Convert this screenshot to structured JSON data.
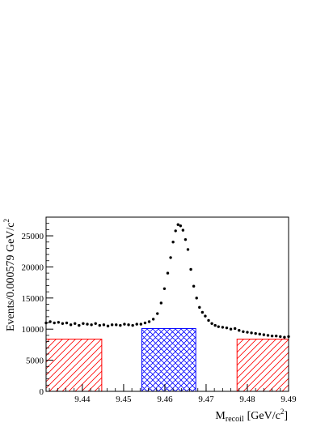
{
  "chart_data": {
    "type": "scatter",
    "xlabel_main": "M",
    "xlabel_sub": "recoil",
    "xlabel_unit": "[GeV/c",
    "xlabel_sup": "2",
    "xlabel_close": "]",
    "ylabel_main": "Events/0.000579 GeV/c",
    "ylabel_sup": "2",
    "xlim": [
      9.4312,
      9.49
    ],
    "ylim": [
      0,
      28000
    ],
    "x_ticks": [
      9.44,
      9.45,
      9.46,
      9.47,
      9.48,
      9.49
    ],
    "x_tick_labels": [
      "9.44",
      "9.45",
      "9.46",
      "9.47",
      "9.48",
      "9.49"
    ],
    "y_ticks": [
      0,
      5000,
      10000,
      15000,
      20000,
      25000
    ],
    "y_tick_labels": [
      "0",
      "5000",
      "10000",
      "15000",
      "20000",
      "25000"
    ],
    "grid": false,
    "regions": [
      {
        "x0": 9.4312,
        "x1": 9.4447,
        "height": 8400,
        "color": "#ff0000",
        "pattern": "diagonal-hatch"
      },
      {
        "x0": 9.4544,
        "x1": 9.4675,
        "height": 10100,
        "color": "#0000ff",
        "pattern": "cross-hatch"
      },
      {
        "x0": 9.4775,
        "x1": 9.49,
        "height": 8400,
        "color": "#ff0000",
        "pattern": "diagonal-hatch"
      }
    ],
    "series": [
      {
        "marker": "dot",
        "color": "#000000",
        "points": [
          [
            9.4312,
            11000
          ],
          [
            9.4322,
            11200
          ],
          [
            9.4332,
            11000
          ],
          [
            9.4342,
            11100
          ],
          [
            9.4352,
            10900
          ],
          [
            9.4362,
            11000
          ],
          [
            9.4372,
            10700
          ],
          [
            9.4382,
            10900
          ],
          [
            9.4392,
            10600
          ],
          [
            9.4402,
            10900
          ],
          [
            9.4412,
            10800
          ],
          [
            9.4422,
            10700
          ],
          [
            9.4432,
            10900
          ],
          [
            9.4442,
            10600
          ],
          [
            9.4452,
            10700
          ],
          [
            9.4462,
            10500
          ],
          [
            9.4472,
            10700
          ],
          [
            9.4482,
            10700
          ],
          [
            9.4492,
            10600
          ],
          [
            9.4502,
            10800
          ],
          [
            9.4512,
            10700
          ],
          [
            9.4522,
            10600
          ],
          [
            9.4532,
            10800
          ],
          [
            9.4542,
            10800
          ],
          [
            9.4552,
            11000
          ],
          [
            9.4562,
            11200
          ],
          [
            9.4572,
            11600
          ],
          [
            9.4582,
            12500
          ],
          [
            9.4591,
            14200
          ],
          [
            9.4599,
            16500
          ],
          [
            9.4607,
            19000
          ],
          [
            9.4614,
            21500
          ],
          [
            9.462,
            24000
          ],
          [
            9.4626,
            25800
          ],
          [
            9.4632,
            26800
          ],
          [
            9.4638,
            26600
          ],
          [
            9.4644,
            25900
          ],
          [
            9.465,
            24400
          ],
          [
            9.4656,
            22800
          ],
          [
            9.4663,
            19600
          ],
          [
            9.467,
            16900
          ],
          [
            9.4677,
            15000
          ],
          [
            9.4684,
            13500
          ],
          [
            9.4691,
            12700
          ],
          [
            9.4698,
            12100
          ],
          [
            9.4706,
            11400
          ],
          [
            9.4714,
            10900
          ],
          [
            9.4722,
            10600
          ],
          [
            9.473,
            10400
          ],
          [
            9.474,
            10300
          ],
          [
            9.475,
            10200
          ],
          [
            9.476,
            10000
          ],
          [
            9.477,
            10100
          ],
          [
            9.478,
            9800
          ],
          [
            9.479,
            9600
          ],
          [
            9.48,
            9500
          ],
          [
            9.481,
            9400
          ],
          [
            9.482,
            9300
          ],
          [
            9.483,
            9200
          ],
          [
            9.484,
            9100
          ],
          [
            9.485,
            9000
          ],
          [
            9.486,
            8900
          ],
          [
            9.487,
            8900
          ],
          [
            9.488,
            8800
          ],
          [
            9.489,
            8700
          ],
          [
            9.49,
            8800
          ]
        ]
      }
    ]
  }
}
